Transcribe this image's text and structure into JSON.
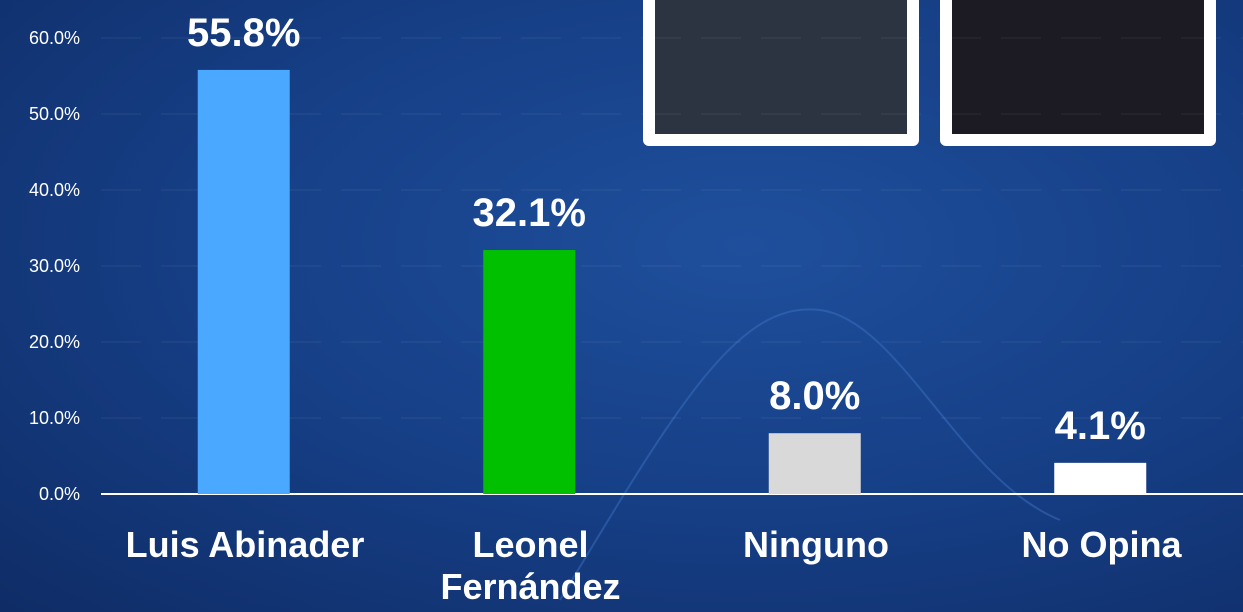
{
  "chart_data": {
    "type": "bar",
    "categories": [
      "Luis Abinader",
      "Leonel Fernández",
      "Ninguno",
      "No Opina"
    ],
    "values": [
      55.8,
      32.1,
      8.0,
      4.1
    ],
    "value_labels": [
      "55.8%",
      "32.1%",
      "8.0%",
      "4.1%"
    ],
    "colors": [
      "#4aa8ff",
      "#00c000",
      "#d9d9d9",
      "#ffffff"
    ],
    "ylim": [
      0,
      60
    ],
    "yticks": [
      {
        "value": 0,
        "label": "0.0%"
      },
      {
        "value": 10,
        "label": "10.0%"
      },
      {
        "value": 20,
        "label": "20.0%"
      },
      {
        "value": 30,
        "label": "30.0%"
      },
      {
        "value": 40,
        "label": "40.0%"
      },
      {
        "value": 50,
        "label": "50.0%"
      },
      {
        "value": 60,
        "label": "60.0%"
      }
    ],
    "grid": true
  }
}
